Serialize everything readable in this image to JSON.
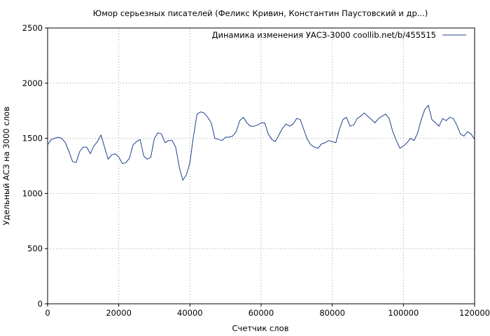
{
  "chart_data": {
    "type": "line",
    "title": "Юмор серьезных писателей (Феликс Кривин, Константин Паустовский и др...)",
    "xlabel": "Счетчик слов",
    "ylabel": "Удельный АСЗ на 3000 слов",
    "xlim": [
      0,
      120000
    ],
    "ylim": [
      0,
      2500
    ],
    "xticks": [
      0,
      20000,
      40000,
      60000,
      80000,
      100000,
      120000
    ],
    "yticks": [
      0,
      500,
      1000,
      1500,
      2000,
      2500
    ],
    "grid": true,
    "legend_position": "top-right",
    "series": [
      {
        "name": "Динамика изменения УАСЗ-3000  coollib.net/b/455515",
        "color": "#1f3f8f",
        "x": [
          0,
          1000,
          2000,
          3000,
          4000,
          5000,
          6000,
          7000,
          8000,
          9000,
          10000,
          11000,
          12000,
          13000,
          14000,
          15000,
          16000,
          17000,
          18000,
          19000,
          20000,
          21000,
          22000,
          23000,
          24000,
          25000,
          26000,
          27000,
          28000,
          29000,
          30000,
          31000,
          32000,
          33000,
          34000,
          35000,
          36000,
          37000,
          38000,
          39000,
          40000,
          41000,
          42000,
          43000,
          44000,
          45000,
          46000,
          47000,
          48000,
          49000,
          50000,
          51000,
          52000,
          53000,
          54000,
          55000,
          56000,
          57000,
          58000,
          59000,
          60000,
          61000,
          62000,
          63000,
          64000,
          65000,
          66000,
          67000,
          68000,
          69000,
          70000,
          71000,
          72000,
          73000,
          74000,
          75000,
          76000,
          77000,
          78000,
          79000,
          80000,
          81000,
          82000,
          83000,
          84000,
          85000,
          86000,
          87000,
          88000,
          89000,
          90000,
          91000,
          92000,
          93000,
          94000,
          95000,
          96000,
          97000,
          98000,
          99000,
          100000,
          101000,
          102000,
          103000,
          104000,
          105000,
          106000,
          107000,
          108000,
          109000,
          110000,
          111000,
          112000,
          113000,
          114000,
          115000,
          116000,
          117000,
          118000,
          119000,
          120000
        ],
        "values": [
          1440,
          1490,
          1500,
          1510,
          1500,
          1460,
          1380,
          1290,
          1280,
          1380,
          1420,
          1420,
          1360,
          1430,
          1470,
          1530,
          1420,
          1310,
          1350,
          1360,
          1330,
          1270,
          1280,
          1320,
          1440,
          1470,
          1490,
          1340,
          1310,
          1330,
          1500,
          1550,
          1540,
          1460,
          1480,
          1480,
          1420,
          1240,
          1120,
          1170,
          1280,
          1520,
          1720,
          1740,
          1730,
          1690,
          1640,
          1500,
          1490,
          1480,
          1510,
          1510,
          1520,
          1560,
          1660,
          1690,
          1640,
          1610,
          1610,
          1620,
          1640,
          1640,
          1540,
          1490,
          1470,
          1530,
          1590,
          1630,
          1610,
          1630,
          1680,
          1670,
          1580,
          1490,
          1440,
          1420,
          1410,
          1450,
          1460,
          1480,
          1470,
          1460,
          1580,
          1670,
          1690,
          1610,
          1620,
          1680,
          1700,
          1730,
          1700,
          1670,
          1640,
          1680,
          1700,
          1720,
          1680,
          1560,
          1480,
          1410,
          1430,
          1460,
          1500,
          1480,
          1550,
          1670,
          1760,
          1800,
          1670,
          1640,
          1610,
          1680,
          1660,
          1690,
          1680,
          1620,
          1540,
          1520,
          1560,
          1540,
          1490
        ]
      }
    ]
  }
}
